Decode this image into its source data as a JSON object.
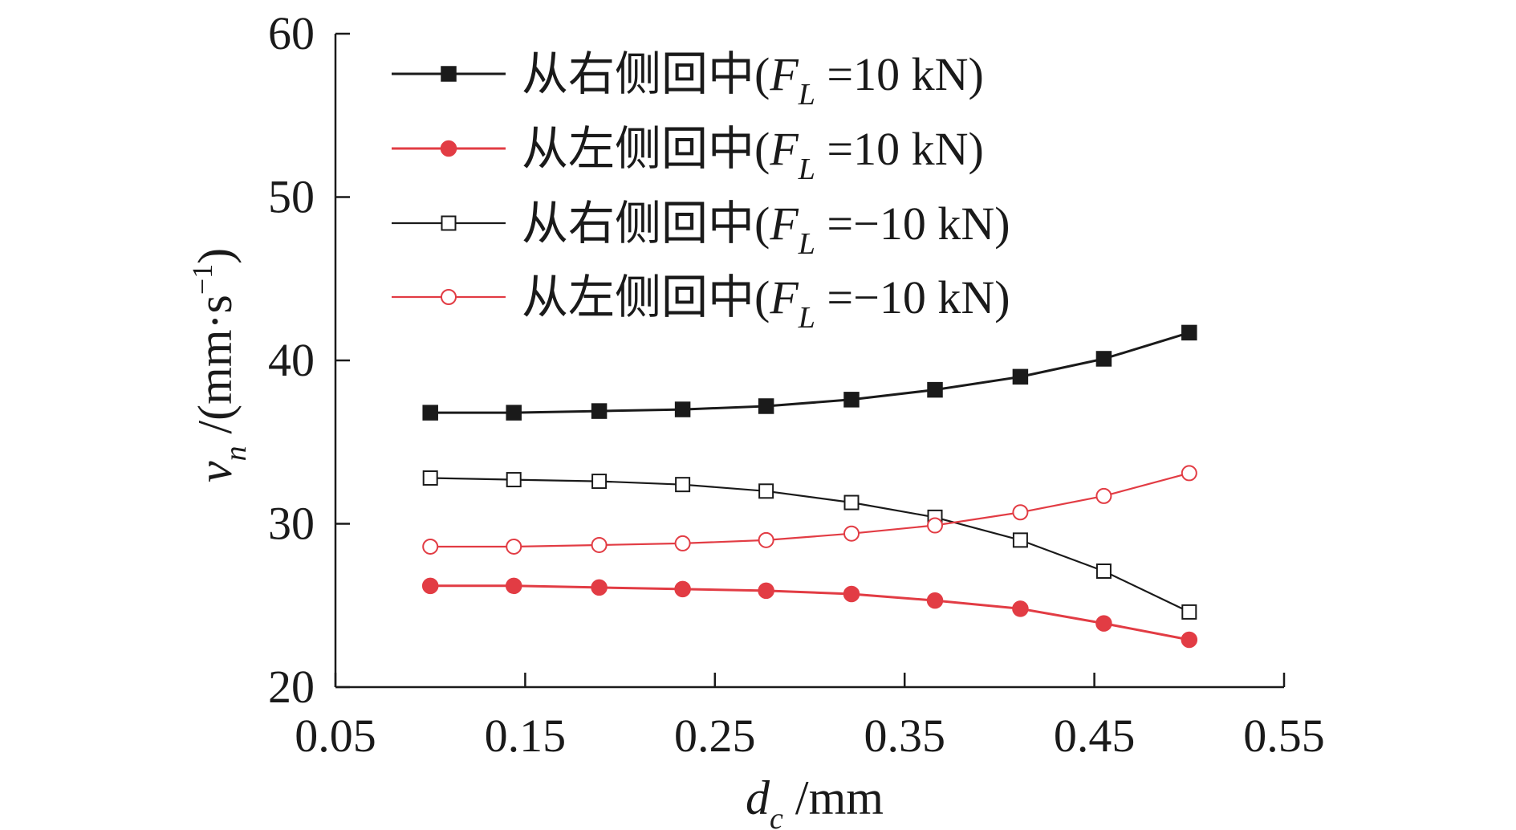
{
  "chart_data": {
    "type": "line",
    "xlabel": {
      "var": "d",
      "sub": "c",
      "unit": " /mm"
    },
    "ylabel": {
      "var": "v",
      "sub": "n",
      "unit": " /(mm·s",
      "sup": "−1",
      "close": ")"
    },
    "xlim": [
      0.05,
      0.55
    ],
    "ylim": [
      20,
      60
    ],
    "xticks": [
      0.05,
      0.15,
      0.25,
      0.35,
      0.45,
      0.55
    ],
    "xtick_labels": [
      "0.05",
      "0.15",
      "0.25",
      "0.35",
      "0.45",
      "0.55"
    ],
    "yticks": [
      20,
      30,
      40,
      50,
      60
    ],
    "ytick_labels": [
      "20",
      "30",
      "40",
      "50",
      "60"
    ],
    "x": [
      0.1,
      0.144,
      0.189,
      0.233,
      0.277,
      0.322,
      0.366,
      0.411,
      0.455,
      0.5
    ],
    "series": [
      {
        "name": "从右侧回中(FL=10 kN)",
        "prefix": "从右侧回中(",
        "var": "F",
        "sub": "L",
        "suffix": " =10 kN)",
        "color": "#1a1a1a",
        "marker": "square-filled",
        "values": [
          36.8,
          36.8,
          36.9,
          37.0,
          37.2,
          37.6,
          38.2,
          39.0,
          40.1,
          41.7
        ]
      },
      {
        "name": "从左侧回中(FL=10 kN)",
        "prefix": "从左侧回中(",
        "var": "F",
        "sub": "L",
        "suffix": " =10 kN)",
        "color": "#e23c44",
        "marker": "circle-filled",
        "values": [
          26.2,
          26.2,
          26.1,
          26.0,
          25.9,
          25.7,
          25.3,
          24.8,
          23.9,
          22.9
        ]
      },
      {
        "name": "从右侧回中(FL=−10 kN)",
        "prefix": "从右侧回中(",
        "var": "F",
        "sub": "L",
        "suffix": " =−10 kN)",
        "color": "#1a1a1a",
        "marker": "square-open",
        "values": [
          32.8,
          32.7,
          32.6,
          32.4,
          32.0,
          31.3,
          30.4,
          29.0,
          27.1,
          24.6
        ]
      },
      {
        "name": "从左侧回中(FL=−10 kN)",
        "prefix": "从左侧回中(",
        "var": "F",
        "sub": "L",
        "suffix": " =−10 kN)",
        "color": "#e23c44",
        "marker": "circle-open",
        "values": [
          28.6,
          28.6,
          28.7,
          28.8,
          29.0,
          29.4,
          29.9,
          30.7,
          31.7,
          33.1
        ]
      }
    ],
    "legend_position": "top-left"
  }
}
